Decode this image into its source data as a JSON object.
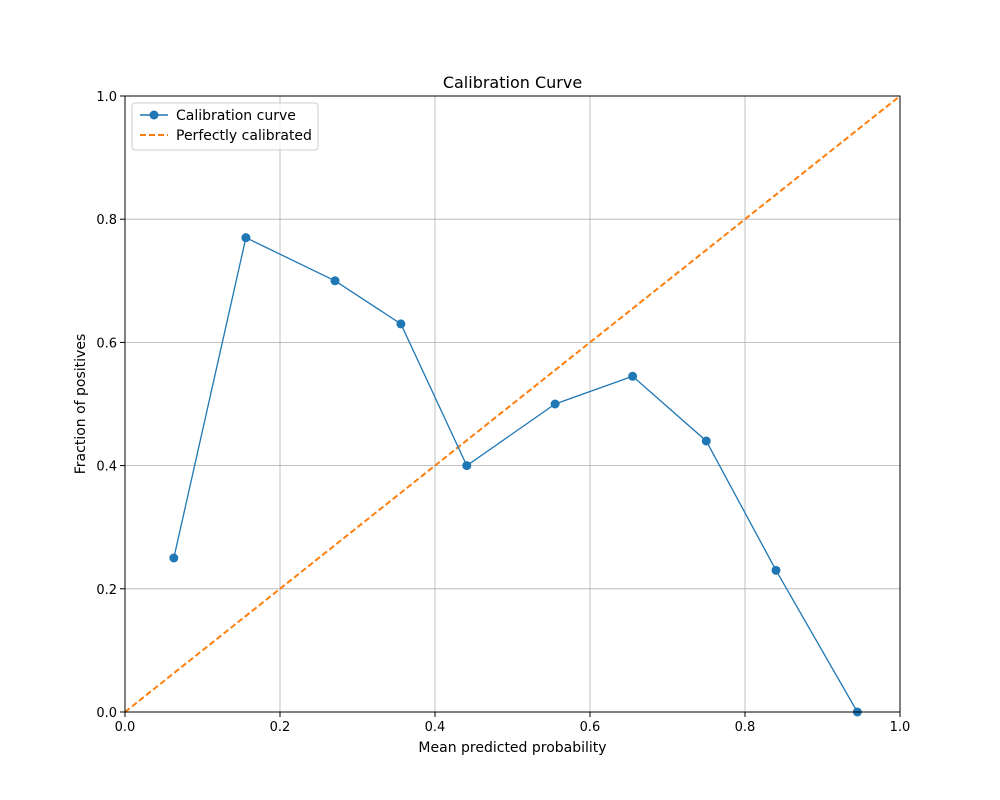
{
  "chart_data": {
    "type": "line",
    "title": "Calibration Curve",
    "xlabel": "Mean predicted probability",
    "ylabel": "Fraction of positives",
    "xlim": [
      0.0,
      1.0
    ],
    "ylim": [
      0.0,
      1.0
    ],
    "grid": true,
    "legend_position": "top-left",
    "x_ticks": [
      "0.0",
      "0.2",
      "0.4",
      "0.6",
      "0.8",
      "1.0"
    ],
    "y_ticks": [
      "0.0",
      "0.2",
      "0.4",
      "0.6",
      "0.8",
      "1.0"
    ],
    "series": [
      {
        "name": "Calibration curve",
        "style": "solid-with-markers",
        "color": "#1f77b4",
        "x": [
          0.063,
          0.156,
          0.271,
          0.356,
          0.441,
          0.555,
          0.655,
          0.75,
          0.84,
          0.945
        ],
        "y": [
          0.25,
          0.77,
          0.7,
          0.63,
          0.4,
          0.5,
          0.545,
          0.44,
          0.23,
          0.0
        ]
      },
      {
        "name": "Perfectly calibrated",
        "style": "dashed",
        "color": "#ff7f0e",
        "x": [
          0.0,
          1.0
        ],
        "y": [
          0.0,
          1.0
        ]
      }
    ]
  }
}
